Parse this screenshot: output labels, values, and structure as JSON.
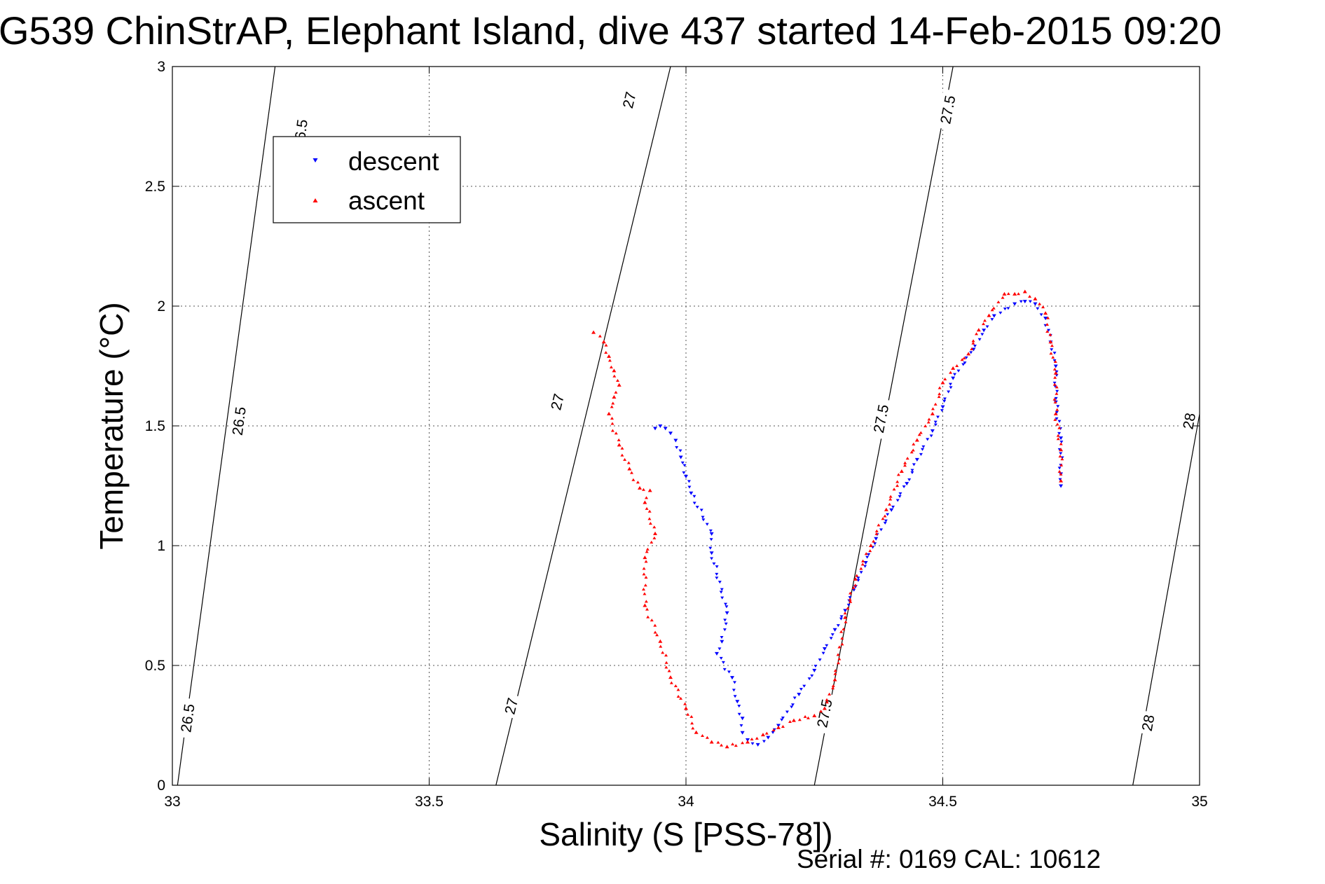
{
  "chart_data": {
    "type": "scatter",
    "title": "G539 ChinStrAP, Elephant Island, dive 437 started 14-Feb-2015 09:20",
    "xlabel": "Salinity (S [PSS-78])",
    "ylabel": "Temperature (°C)",
    "xlim": [
      33,
      35
    ],
    "ylim": [
      0,
      3
    ],
    "xticks": [
      "33",
      "33.5",
      "34",
      "34.5",
      "35"
    ],
    "yticks": [
      "0",
      "0.5",
      "1",
      "1.5",
      "2",
      "2.5",
      "3"
    ],
    "grid": true,
    "legend_position": "top-left",
    "footer": "Serial #: 0169 CAL: 10612",
    "colors": {
      "descent": "#0000ff",
      "ascent": "#ff0000"
    },
    "series": [
      {
        "name": "descent",
        "marker": "triangle-down",
        "points": [
          [
            33.94,
            1.49
          ],
          [
            33.95,
            1.5
          ],
          [
            33.96,
            1.49
          ],
          [
            33.97,
            1.47
          ],
          [
            33.98,
            1.44
          ],
          [
            33.99,
            1.37
          ],
          [
            34.0,
            1.29
          ],
          [
            34.01,
            1.22
          ],
          [
            34.05,
            1.05
          ],
          [
            34.05,
            0.97
          ],
          [
            34.08,
            0.72
          ],
          [
            34.07,
            0.6
          ],
          [
            34.06,
            0.55
          ],
          [
            34.09,
            0.45
          ],
          [
            34.1,
            0.35
          ],
          [
            34.11,
            0.28
          ],
          [
            34.11,
            0.22
          ],
          [
            34.12,
            0.19
          ],
          [
            34.14,
            0.17
          ],
          [
            34.16,
            0.2
          ],
          [
            34.18,
            0.25
          ],
          [
            34.22,
            0.38
          ],
          [
            34.25,
            0.48
          ],
          [
            34.27,
            0.57
          ],
          [
            34.29,
            0.65
          ],
          [
            34.31,
            0.73
          ],
          [
            34.33,
            0.83
          ],
          [
            34.35,
            0.93
          ],
          [
            34.37,
            1.03
          ],
          [
            34.4,
            1.15
          ],
          [
            34.43,
            1.26
          ],
          [
            34.45,
            1.36
          ],
          [
            34.48,
            1.48
          ],
          [
            34.5,
            1.58
          ],
          [
            34.52,
            1.7
          ],
          [
            34.56,
            1.82
          ],
          [
            34.58,
            1.9
          ],
          [
            34.6,
            1.96
          ],
          [
            34.64,
            2.01
          ],
          [
            34.66,
            2.02
          ],
          [
            34.68,
            2.01
          ],
          [
            34.7,
            1.95
          ],
          [
            34.71,
            1.85
          ],
          [
            34.72,
            1.75
          ],
          [
            34.72,
            1.6
          ],
          [
            34.73,
            1.45
          ],
          [
            34.73,
            1.3
          ],
          [
            34.73,
            1.25
          ]
        ]
      },
      {
        "name": "ascent",
        "marker": "triangle-up",
        "points": [
          [
            33.82,
            1.89
          ],
          [
            33.84,
            1.85
          ],
          [
            33.85,
            1.79
          ],
          [
            33.86,
            1.73
          ],
          [
            33.87,
            1.67
          ],
          [
            33.86,
            1.62
          ],
          [
            33.85,
            1.55
          ],
          [
            33.87,
            1.42
          ],
          [
            33.89,
            1.32
          ],
          [
            33.91,
            1.24
          ],
          [
            33.93,
            1.23
          ],
          [
            33.92,
            1.18
          ],
          [
            33.94,
            1.05
          ],
          [
            33.92,
            0.95
          ],
          [
            33.92,
            0.75
          ],
          [
            33.95,
            0.6
          ],
          [
            33.97,
            0.45
          ],
          [
            34.0,
            0.32
          ],
          [
            34.02,
            0.22
          ],
          [
            34.05,
            0.18
          ],
          [
            34.08,
            0.16
          ],
          [
            34.12,
            0.18
          ],
          [
            34.15,
            0.21
          ],
          [
            34.18,
            0.24
          ],
          [
            34.21,
            0.27
          ],
          [
            34.25,
            0.29
          ],
          [
            34.27,
            0.32
          ],
          [
            34.29,
            0.44
          ],
          [
            34.31,
            0.7
          ],
          [
            34.33,
            0.86
          ],
          [
            34.36,
            1.0
          ],
          [
            34.39,
            1.15
          ],
          [
            34.42,
            1.31
          ],
          [
            34.45,
            1.44
          ],
          [
            34.48,
            1.55
          ],
          [
            34.5,
            1.68
          ],
          [
            34.52,
            1.74
          ],
          [
            34.55,
            1.8
          ],
          [
            34.57,
            1.9
          ],
          [
            34.59,
            1.96
          ],
          [
            34.62,
            2.05
          ],
          [
            34.64,
            2.05
          ],
          [
            34.66,
            2.06
          ],
          [
            34.68,
            2.03
          ],
          [
            34.7,
            1.97
          ],
          [
            34.71,
            1.85
          ],
          [
            34.72,
            1.72
          ],
          [
            34.72,
            1.55
          ],
          [
            34.73,
            1.4
          ],
          [
            34.73,
            1.27
          ]
        ]
      }
    ],
    "contours": [
      {
        "label": "26.5",
        "line": [
          [
            33.01,
            0
          ],
          [
            33.2,
            3
          ]
        ],
        "labels_at": [
          [
            33.03,
            0.28
          ],
          [
            33.13,
            1.52
          ],
          [
            33.25,
            2.72
          ]
        ]
      },
      {
        "label": "27",
        "line": [
          [
            33.63,
            0
          ],
          [
            33.97,
            3
          ]
        ],
        "labels_at": [
          [
            33.66,
            0.33
          ],
          [
            33.75,
            1.6
          ],
          [
            33.89,
            2.86
          ]
        ]
      },
      {
        "label": "27.5",
        "line": [
          [
            34.25,
            0
          ],
          [
            34.52,
            3
          ]
        ],
        "labels_at": [
          [
            34.27,
            0.3
          ],
          [
            34.38,
            1.53
          ],
          [
            34.51,
            2.82
          ]
        ]
      },
      {
        "label": "28",
        "line": [
          [
            34.87,
            0
          ],
          [
            35.0,
            1.55
          ]
        ],
        "labels_at": [
          [
            34.9,
            0.26
          ],
          [
            34.98,
            1.52
          ]
        ]
      }
    ]
  }
}
